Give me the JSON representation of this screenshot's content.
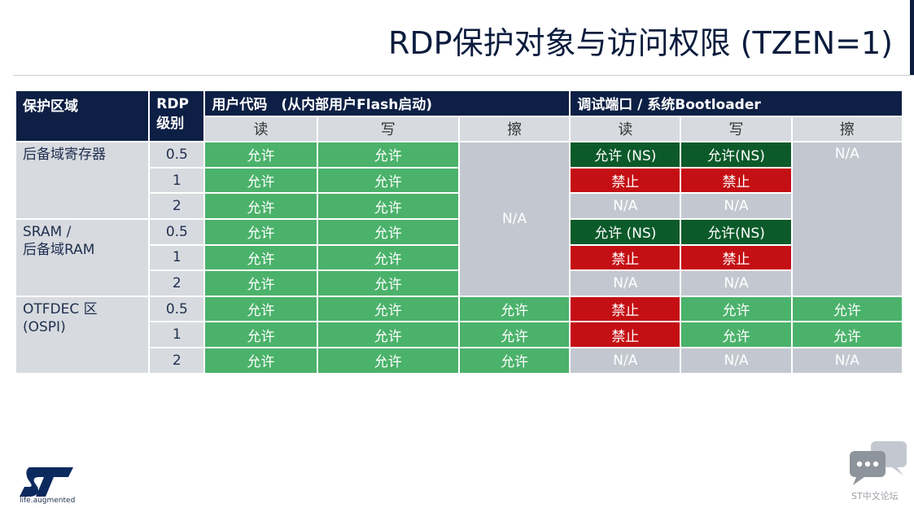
{
  "title": "RDP保护对象与访问权限 (TZEN=1)",
  "header": {
    "region": "保护区域",
    "rdp_line1": "RDP",
    "rdp_line2": "级别",
    "user_code": "用户代码　(从内部用户Flash启动)",
    "debug": "调试端口 / 系统Bootloader",
    "read": "读",
    "write": "写",
    "erase": "擦"
  },
  "regions": {
    "backup_reg": "后备域寄存器",
    "sram_line1": "SRAM /",
    "sram_line2": "后备域RAM",
    "otfdec_line1": "OTFDEC 区",
    "otfdec_line2": "(OSPI)"
  },
  "rows": [
    {
      "level": "0.5",
      "u_read": "允许",
      "u_write": "允许",
      "d_read": "允许 (NS)",
      "d_write": "允许(NS)"
    },
    {
      "level": "1",
      "u_read": "允许",
      "u_write": "允许",
      "d_read": "禁止",
      "d_write": "禁止"
    },
    {
      "level": "2",
      "u_read": "允许",
      "u_write": "允许",
      "d_read": "N/A",
      "d_write": "N/A"
    },
    {
      "level": "0.5",
      "u_read": "允许",
      "u_write": "允许",
      "d_read": "允许 (NS)",
      "d_write": "允许(NS)"
    },
    {
      "level": "1",
      "u_read": "允许",
      "u_write": "允许",
      "d_read": "禁止",
      "d_write": "禁止"
    },
    {
      "level": "2",
      "u_read": "允许",
      "u_write": "允许",
      "d_read": "N/A",
      "d_write": "N/A"
    },
    {
      "level": "0.5",
      "u_read": "允许",
      "u_write": "允许",
      "u_erase": "允许",
      "d_read": "禁止",
      "d_write": "允许",
      "d_erase": "允许"
    },
    {
      "level": "1",
      "u_read": "允许",
      "u_write": "允许",
      "u_erase": "允许",
      "d_read": "禁止",
      "d_write": "允许",
      "d_erase": "允许"
    },
    {
      "level": "2",
      "u_read": "允许",
      "u_write": "允许",
      "u_erase": "允许",
      "d_read": "N/A",
      "d_write": "N/A",
      "d_erase": "N/A"
    }
  ],
  "merged": {
    "user_erase_na": "N/A",
    "debug_erase_na": "N/A"
  },
  "colors": {
    "allowed": "#4bb26b",
    "allowed_ns": "#0c5a2a",
    "forbidden": "#c40f14",
    "na": "#c3c8d0",
    "header": "#0d1f45"
  },
  "footer": {
    "tagline": "life.augmented",
    "community": "ST中文论坛",
    "logo_icon": "st-logo-icon",
    "chat_icon": "chat-bubbles-icon"
  }
}
